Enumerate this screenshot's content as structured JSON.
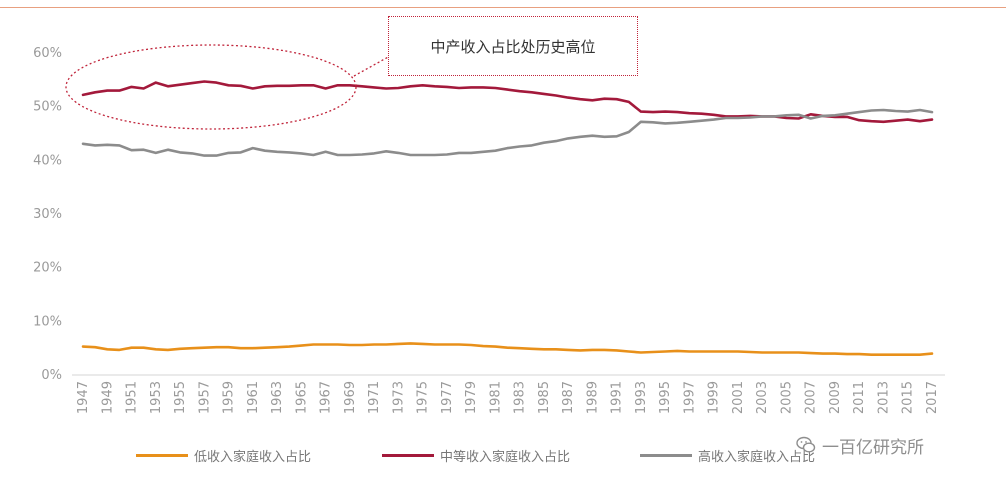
{
  "callout": {
    "text": "中产收入占比处历史高位"
  },
  "watermark": {
    "text": "一百亿研究所",
    "icon": "wechat-icon"
  },
  "colors": {
    "low": "#e8901a",
    "middle": "#a3193b",
    "high": "#8c8c8c",
    "callout": "#c0243a"
  },
  "chart_data": {
    "type": "line",
    "title": "",
    "xlabel": "",
    "ylabel": "",
    "ylim": [
      0,
      60
    ],
    "yticks": [
      "0%",
      "10%",
      "20%",
      "30%",
      "40%",
      "50%",
      "60%"
    ],
    "xticks": [
      "1947",
      "1949",
      "1951",
      "1953",
      "1955",
      "1957",
      "1959",
      "1961",
      "1963",
      "1965",
      "1967",
      "1969",
      "1971",
      "1973",
      "1975",
      "1977",
      "1979",
      "1981",
      "1983",
      "1985",
      "1987",
      "1989",
      "1991",
      "1993",
      "1995",
      "1997",
      "1999",
      "2001",
      "2003",
      "2005",
      "2007",
      "2009",
      "2011",
      "2013",
      "2015",
      "2017"
    ],
    "grid": false,
    "legend_position": "bottom",
    "x": [
      1947,
      1948,
      1949,
      1950,
      1951,
      1952,
      1953,
      1954,
      1955,
      1956,
      1957,
      1958,
      1959,
      1960,
      1961,
      1962,
      1963,
      1964,
      1965,
      1966,
      1967,
      1968,
      1969,
      1970,
      1971,
      1972,
      1973,
      1974,
      1975,
      1976,
      1977,
      1978,
      1979,
      1980,
      1981,
      1982,
      1983,
      1984,
      1985,
      1986,
      1987,
      1988,
      1989,
      1990,
      1991,
      1992,
      1993,
      1994,
      1995,
      1996,
      1997,
      1998,
      1999,
      2000,
      2001,
      2002,
      2003,
      2004,
      2005,
      2006,
      2007,
      2008,
      2009,
      2010,
      2011,
      2012,
      2013,
      2014,
      2015,
      2016,
      2017
    ],
    "series": [
      {
        "name": "低收入家庭收入占比",
        "key": "low",
        "values": [
          5.1,
          5.0,
          4.6,
          4.5,
          4.9,
          4.9,
          4.6,
          4.5,
          4.7,
          4.8,
          4.9,
          5.0,
          5.0,
          4.8,
          4.8,
          4.9,
          5.0,
          5.1,
          5.3,
          5.5,
          5.5,
          5.5,
          5.4,
          5.4,
          5.5,
          5.5,
          5.6,
          5.7,
          5.6,
          5.5,
          5.5,
          5.5,
          5.4,
          5.2,
          5.1,
          4.9,
          4.8,
          4.7,
          4.6,
          4.6,
          4.5,
          4.4,
          4.5,
          4.5,
          4.4,
          4.2,
          4.0,
          4.1,
          4.2,
          4.3,
          4.2,
          4.2,
          4.2,
          4.2,
          4.2,
          4.1,
          4.0,
          4.0,
          4.0,
          4.0,
          3.9,
          3.8,
          3.8,
          3.7,
          3.7,
          3.6,
          3.6,
          3.6,
          3.6,
          3.6,
          3.8
        ]
      },
      {
        "name": "中等收入家庭收入占比",
        "key": "middle",
        "values": [
          52.0,
          52.5,
          52.8,
          52.8,
          53.5,
          53.2,
          54.3,
          53.6,
          53.9,
          54.2,
          54.5,
          54.3,
          53.8,
          53.7,
          53.2,
          53.6,
          53.7,
          53.7,
          53.8,
          53.8,
          53.2,
          53.8,
          53.8,
          53.6,
          53.4,
          53.2,
          53.3,
          53.6,
          53.8,
          53.6,
          53.5,
          53.3,
          53.4,
          53.4,
          53.3,
          53.0,
          52.7,
          52.5,
          52.2,
          51.9,
          51.5,
          51.2,
          51.0,
          51.3,
          51.2,
          50.7,
          48.9,
          48.8,
          48.9,
          48.8,
          48.6,
          48.5,
          48.3,
          48.0,
          48.0,
          48.1,
          48.0,
          48.0,
          47.7,
          47.6,
          48.4,
          48.1,
          47.9,
          47.9,
          47.3,
          47.1,
          47.0,
          47.2,
          47.4,
          47.1,
          47.4
        ]
      },
      {
        "name": "高收入家庭收入占比",
        "key": "high",
        "values": [
          42.9,
          42.6,
          42.7,
          42.6,
          41.7,
          41.8,
          41.2,
          41.8,
          41.3,
          41.1,
          40.7,
          40.7,
          41.2,
          41.3,
          42.1,
          41.6,
          41.4,
          41.3,
          41.1,
          40.8,
          41.4,
          40.8,
          40.8,
          40.9,
          41.1,
          41.5,
          41.2,
          40.8,
          40.8,
          40.8,
          40.9,
          41.2,
          41.2,
          41.4,
          41.6,
          42.1,
          42.4,
          42.6,
          43.1,
          43.4,
          43.9,
          44.2,
          44.4,
          44.2,
          44.3,
          45.1,
          47.0,
          46.9,
          46.7,
          46.8,
          47.0,
          47.2,
          47.4,
          47.7,
          47.7,
          47.8,
          48.0,
          48.0,
          48.2,
          48.3,
          47.6,
          48.1,
          48.2,
          48.5,
          48.8,
          49.1,
          49.2,
          49.0,
          48.9,
          49.2,
          48.8
        ]
      }
    ]
  }
}
